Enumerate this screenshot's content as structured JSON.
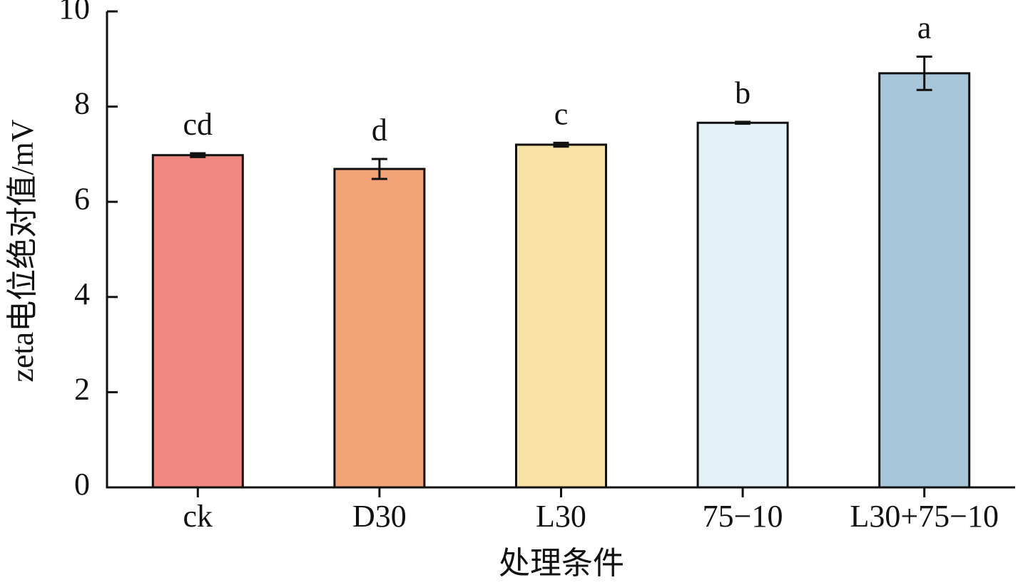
{
  "chart_data": {
    "type": "bar",
    "xlabel": "处理条件",
    "ylabel": "zeta电位绝对值/mV",
    "categories": [
      "ck",
      "D30",
      "L30",
      "75−10",
      "L30+75−10"
    ],
    "values": [
      6.98,
      6.69,
      7.2,
      7.66,
      8.7
    ],
    "errors": [
      0.04,
      0.21,
      0.04,
      0.02,
      0.35
    ],
    "annotations": [
      "cd",
      "d",
      "c",
      "b",
      "a"
    ],
    "colors": [
      "#ef8880",
      "#f2a478",
      "#f8e1a4",
      "#e4f2f8",
      "#a7c6da"
    ],
    "ylim": [
      0,
      10
    ],
    "yticks": [
      0,
      2,
      4,
      6,
      8,
      10
    ],
    "grid": false
  }
}
